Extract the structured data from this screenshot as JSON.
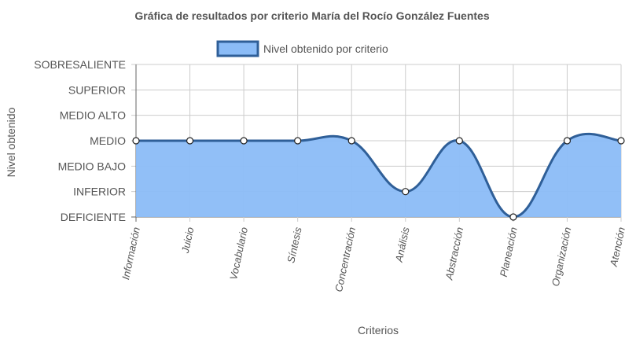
{
  "chart_data": {
    "type": "area",
    "title": "Gráfica de resultados por criterio María del Rocío González Fuentes",
    "xlabel": "Criterios",
    "ylabel": "Nivel obtenido",
    "levels": [
      "DEFICIENTE",
      "INFERIOR",
      "MEDIO BAJO",
      "MEDIO",
      "MEDIO ALTO",
      "SUPERIOR",
      "SOBRESALIENTE"
    ],
    "categories": [
      "Información",
      "Juicio",
      "Vocabulario",
      "Síntesis",
      "Concentración",
      "Análisis",
      "Abstracción",
      "Planeación",
      "Organización",
      "Atención"
    ],
    "series": [
      {
        "name": "Nivel obtenido por criterio",
        "values": [
          "MEDIO",
          "MEDIO",
          "MEDIO",
          "MEDIO",
          "MEDIO",
          "INFERIOR",
          "MEDIO",
          "DEFICIENTE",
          "MEDIO",
          "MEDIO"
        ]
      }
    ],
    "legend_position": "top",
    "grid": true,
    "colors": {
      "line": "#2f5f98",
      "fill": "#8bbcf7",
      "grid": "#cccccc",
      "axis": "#666666"
    }
  }
}
